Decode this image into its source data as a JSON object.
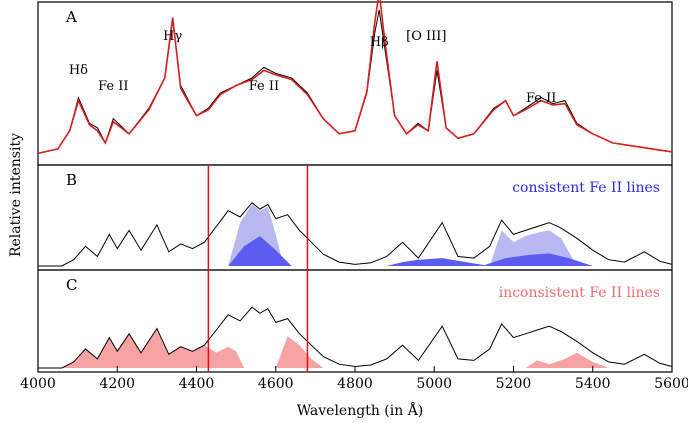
{
  "chart_data": {
    "type": "line",
    "xlabel": "Wavelength (in Å)",
    "ylabel": "Relative intensity",
    "xlim": [
      4000,
      5600
    ],
    "x_ticks": [
      4000,
      4200,
      4400,
      4600,
      4800,
      5000,
      5200,
      5400,
      5600
    ],
    "vertical_lines": [
      4430,
      4680
    ],
    "colors": {
      "observed": "#000000",
      "model": "#d81f1f",
      "consistent_dark": "#5c5cf0",
      "consistent_light": "#b9b9f2",
      "inconsistent": "#f7a3a3",
      "markers": "#e01010"
    },
    "panels": [
      {
        "label": "A",
        "annotations": [
          {
            "text": "Hδ",
            "x": 4102
          },
          {
            "text": "Fe II",
            "x": 4190
          },
          {
            "text": "Hγ",
            "x": 4340
          },
          {
            "text": "Fe II",
            "x": 4570
          },
          {
            "text": "Hβ",
            "x": 4861
          },
          {
            "text": "[O III]",
            "x": 4980
          },
          {
            "text": "Fe II",
            "x": 5270
          }
        ],
        "series": [
          {
            "name": "",
            "role": "observed",
            "x": [
              4000,
              4050,
              4080,
              4102,
              4130,
              4150,
              4170,
              4190,
              4230,
              4280,
              4320,
              4340,
              4360,
              4400,
              4430,
              4460,
              4500,
              4540,
              4570,
              4600,
              4640,
              4680,
              4720,
              4760,
              4800,
              4830,
              4850,
              4861,
              4875,
              4900,
              4930,
              4959,
              4985,
              5007,
              5030,
              5060,
              5100,
              5150,
              5180,
              5200,
              5230,
              5270,
              5300,
              5330,
              5360,
              5400,
              5450,
              5500,
              5550,
              5600
            ],
            "y": [
              0.05,
              0.08,
              0.2,
              0.42,
              0.25,
              0.22,
              0.12,
              0.28,
              0.18,
              0.35,
              0.55,
              0.93,
              0.5,
              0.3,
              0.35,
              0.45,
              0.5,
              0.55,
              0.62,
              0.58,
              0.55,
              0.45,
              0.28,
              0.18,
              0.2,
              0.45,
              0.85,
              1.0,
              0.75,
              0.3,
              0.18,
              0.25,
              0.2,
              0.6,
              0.22,
              0.15,
              0.18,
              0.35,
              0.4,
              0.3,
              0.35,
              0.42,
              0.38,
              0.4,
              0.25,
              0.18,
              0.12,
              0.1,
              0.08,
              0.06
            ]
          },
          {
            "name": "",
            "role": "model",
            "x": [
              4000,
              4050,
              4080,
              4102,
              4130,
              4150,
              4170,
              4190,
              4230,
              4280,
              4320,
              4340,
              4360,
              4400,
              4430,
              4460,
              4500,
              4540,
              4570,
              4600,
              4640,
              4680,
              4720,
              4760,
              4800,
              4830,
              4850,
              4861,
              4875,
              4900,
              4930,
              4959,
              4985,
              5007,
              5030,
              5060,
              5100,
              5150,
              5180,
              5200,
              5230,
              5270,
              5300,
              5330,
              5360,
              5400,
              5450,
              5500,
              5550,
              5600
            ],
            "y": [
              0.05,
              0.08,
              0.2,
              0.4,
              0.24,
              0.2,
              0.12,
              0.26,
              0.18,
              0.34,
              0.55,
              0.95,
              0.48,
              0.3,
              0.34,
              0.44,
              0.5,
              0.54,
              0.6,
              0.57,
              0.54,
              0.44,
              0.28,
              0.18,
              0.2,
              0.46,
              0.92,
              1.12,
              0.8,
              0.3,
              0.18,
              0.24,
              0.2,
              0.66,
              0.22,
              0.15,
              0.18,
              0.34,
              0.4,
              0.3,
              0.34,
              0.4,
              0.37,
              0.38,
              0.24,
              0.18,
              0.12,
              0.1,
              0.08,
              0.06
            ]
          }
        ]
      },
      {
        "label": "B",
        "legend": "consistent Fe II lines",
        "series": [
          {
            "name": "",
            "role": "template",
            "x": [
              4000,
              4060,
              4090,
              4120,
              4150,
              4180,
              4200,
              4230,
              4260,
              4300,
              4330,
              4360,
              4390,
              4420,
              4450,
              4480,
              4510,
              4540,
              4560,
              4580,
              4600,
              4630,
              4660,
              4690,
              4720,
              4760,
              4800,
              4840,
              4880,
              4920,
              4960,
              5020,
              5060,
              5100,
              5140,
              5170,
              5200,
              5230,
              5260,
              5290,
              5320,
              5360,
              5400,
              5440,
              5480,
              5530,
              5570,
              5600
            ],
            "y": [
              0.0,
              0.0,
              0.08,
              0.25,
              0.12,
              0.4,
              0.22,
              0.45,
              0.2,
              0.52,
              0.18,
              0.28,
              0.22,
              0.3,
              0.5,
              0.7,
              0.62,
              0.8,
              0.72,
              0.78,
              0.6,
              0.65,
              0.45,
              0.3,
              0.15,
              0.05,
              0.02,
              0.04,
              0.12,
              0.3,
              0.1,
              0.55,
              0.12,
              0.1,
              0.25,
              0.58,
              0.4,
              0.45,
              0.5,
              0.55,
              0.48,
              0.35,
              0.2,
              0.08,
              0.05,
              0.18,
              0.06,
              0.02
            ]
          },
          {
            "name": "",
            "role": "consistent_light",
            "x": [
              4480,
              4510,
              4540,
              4560,
              4580,
              4600,
              4620
            ],
            "y": [
              0.0,
              0.55,
              0.78,
              0.7,
              0.75,
              0.4,
              0.0
            ]
          },
          {
            "name": "",
            "role": "consistent_dark",
            "x": [
              4480,
              4520,
              4560,
              4600,
              4640
            ],
            "y": [
              0.0,
              0.25,
              0.38,
              0.2,
              0.0
            ]
          },
          {
            "name": "",
            "role": "consistent_dark",
            "x": [
              4880,
              4920,
              4960,
              5020,
              5080,
              5140
            ],
            "y": [
              0.0,
              0.05,
              0.08,
              0.1,
              0.05,
              0.0
            ]
          },
          {
            "name": "",
            "role": "consistent_light",
            "x": [
              5140,
              5170,
              5200,
              5230,
              5260,
              5290,
              5320,
              5360
            ],
            "y": [
              0.0,
              0.45,
              0.3,
              0.38,
              0.42,
              0.45,
              0.35,
              0.0
            ]
          },
          {
            "name": "",
            "role": "consistent_dark",
            "x": [
              5120,
              5180,
              5240,
              5290,
              5340,
              5400
            ],
            "y": [
              0.0,
              0.1,
              0.14,
              0.16,
              0.1,
              0.0
            ]
          }
        ]
      },
      {
        "label": "C",
        "legend": "inconsistent Fe II lines",
        "series": [
          {
            "name": "",
            "role": "template",
            "x": [
              4000,
              4060,
              4090,
              4120,
              4150,
              4180,
              4200,
              4230,
              4260,
              4300,
              4330,
              4360,
              4390,
              4420,
              4450,
              4480,
              4510,
              4540,
              4560,
              4580,
              4600,
              4630,
              4660,
              4690,
              4720,
              4760,
              4800,
              4840,
              4880,
              4920,
              4960,
              5020,
              5060,
              5100,
              5140,
              5170,
              5200,
              5230,
              5260,
              5290,
              5320,
              5360,
              5400,
              5440,
              5480,
              5530,
              5570,
              5600
            ],
            "y": [
              0.0,
              0.0,
              0.08,
              0.25,
              0.12,
              0.4,
              0.22,
              0.45,
              0.2,
              0.52,
              0.18,
              0.28,
              0.22,
              0.3,
              0.5,
              0.7,
              0.62,
              0.8,
              0.72,
              0.78,
              0.6,
              0.65,
              0.45,
              0.3,
              0.15,
              0.05,
              0.02,
              0.04,
              0.12,
              0.3,
              0.1,
              0.55,
              0.12,
              0.1,
              0.25,
              0.58,
              0.4,
              0.45,
              0.5,
              0.55,
              0.48,
              0.35,
              0.2,
              0.08,
              0.05,
              0.18,
              0.06,
              0.02
            ]
          },
          {
            "name": "",
            "role": "inconsistent",
            "x": [
              4060,
              4090,
              4120,
              4150,
              4180,
              4200,
              4230,
              4260,
              4300,
              4330,
              4360,
              4390,
              4420,
              4450,
              4480,
              4500,
              4520
            ],
            "y": [
              0.0,
              0.08,
              0.25,
              0.12,
              0.4,
              0.22,
              0.45,
              0.2,
              0.52,
              0.18,
              0.28,
              0.22,
              0.3,
              0.2,
              0.28,
              0.22,
              0.0
            ]
          },
          {
            "name": "",
            "role": "inconsistent",
            "x": [
              4600,
              4630,
              4660,
              4690,
              4720
            ],
            "y": [
              0.0,
              0.42,
              0.3,
              0.12,
              0.0
            ]
          },
          {
            "name": "",
            "role": "inconsistent",
            "x": [
              5230,
              5260,
              5290,
              5330,
              5360,
              5400,
              5440
            ],
            "y": [
              0.0,
              0.1,
              0.05,
              0.12,
              0.2,
              0.08,
              0.0
            ]
          }
        ]
      }
    ]
  }
}
